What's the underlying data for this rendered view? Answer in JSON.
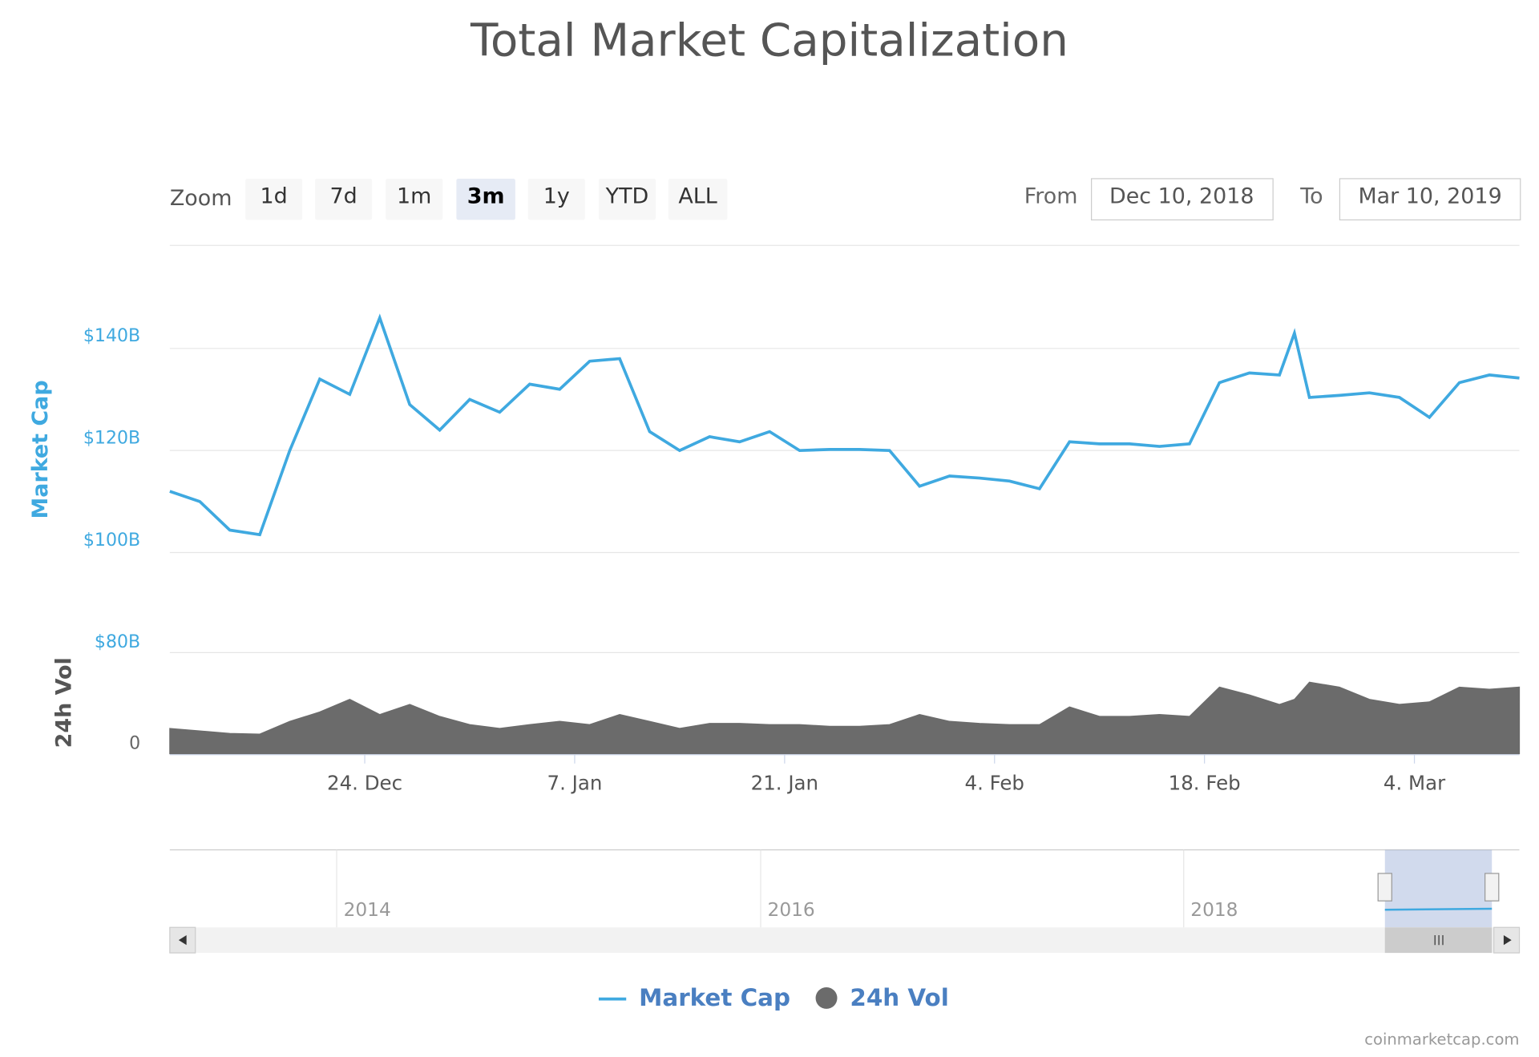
{
  "chart_data": {
    "type": "line",
    "title": "Total Market Capitalization",
    "x": [
      "2018-12-11",
      "2018-12-13",
      "2018-12-15",
      "2018-12-17",
      "2018-12-19",
      "2018-12-21",
      "2018-12-23",
      "2018-12-25",
      "2018-12-27",
      "2018-12-29",
      "2018-12-31",
      "2019-01-02",
      "2019-01-04",
      "2019-01-06",
      "2019-01-08",
      "2019-01-10",
      "2019-01-12",
      "2019-01-14",
      "2019-01-16",
      "2019-01-18",
      "2019-01-20",
      "2019-01-22",
      "2019-01-24",
      "2019-01-26",
      "2019-01-28",
      "2019-01-30",
      "2019-02-01",
      "2019-02-03",
      "2019-02-05",
      "2019-02-07",
      "2019-02-09",
      "2019-02-11",
      "2019-02-13",
      "2019-02-15",
      "2019-02-17",
      "2019-02-19",
      "2019-02-21",
      "2019-02-23",
      "2019-02-24",
      "2019-02-25",
      "2019-02-27",
      "2019-03-01",
      "2019-03-03",
      "2019-03-05",
      "2019-03-07",
      "2019-03-09",
      "2019-03-11"
    ],
    "series": [
      {
        "name": "Market Cap",
        "color": "#3fa9e0",
        "values": [
          112,
          110,
          104.4,
          103.5,
          120,
          134,
          131,
          146,
          129,
          124,
          130,
          127.5,
          133,
          132,
          137.5,
          138,
          123.7,
          120,
          122.7,
          121.7,
          123.7,
          120,
          120.2,
          120.2,
          120,
          113,
          115,
          114.6,
          114,
          112.5,
          121.7,
          121.3,
          121.3,
          120.8,
          121.3,
          133.3,
          135.2,
          134.8,
          143,
          130.4,
          130.8,
          131.3,
          130.4,
          126.5,
          133.3,
          134.8,
          134.2
        ]
      },
      {
        "name": "24h Vol",
        "color": "#6b6b6b",
        "type": "area",
        "axis": "y2",
        "values": [
          20,
          18,
          16,
          15.5,
          25.6,
          33,
          43,
          31,
          39,
          29.5,
          23,
          20,
          23,
          25.6,
          23,
          31,
          25.6,
          20,
          24,
          24,
          23,
          23,
          21.7,
          21.7,
          23,
          31,
          25.6,
          24,
          23,
          23,
          37,
          29.5,
          29.5,
          31,
          29.5,
          52.7,
          46.5,
          39,
          43,
          56.6,
          52.7,
          43,
          39,
          41,
          52.7,
          51,
          52.7
        ]
      }
    ],
    "xlim": [
      "2018-12-11",
      "2019-03-11"
    ],
    "xticks": [
      {
        "value": "2018-12-24",
        "label": "24. Dec"
      },
      {
        "value": "2019-01-07",
        "label": "7. Jan"
      },
      {
        "value": "2019-01-21",
        "label": "21. Jan"
      },
      {
        "value": "2019-02-04",
        "label": "4. Feb"
      },
      {
        "value": "2019-02-18",
        "label": "18. Feb"
      },
      {
        "value": "2019-03-04",
        "label": "4. Mar"
      }
    ],
    "ylabel": "Market Cap",
    "ylim": [
      100,
      160
    ],
    "yticks": [
      {
        "value": 100,
        "label": "$100B"
      },
      {
        "value": 120,
        "label": "$120B"
      },
      {
        "value": 140,
        "label": "$140B"
      }
    ],
    "y2label": "24h Vol",
    "y2lim": [
      0,
      80
    ],
    "y2ticks": [
      0,
      {
        "value": 80,
        "label": "$80B"
      }
    ],
    "grid": true,
    "legend": "bottom"
  },
  "ui": {
    "zoom": {
      "label": "Zoom",
      "buttons": [
        "1d",
        "7d",
        "1m",
        "3m",
        "1y",
        "YTD",
        "ALL"
      ],
      "selected": 3
    },
    "range": {
      "from_label": "From",
      "from": "Dec 10, 2018",
      "to_label": "To",
      "to": "Mar 10, 2019"
    },
    "navigator": {
      "labels": [
        "2014",
        "2016",
        "2018"
      ]
    },
    "credit": "coinmarketcap.com"
  }
}
